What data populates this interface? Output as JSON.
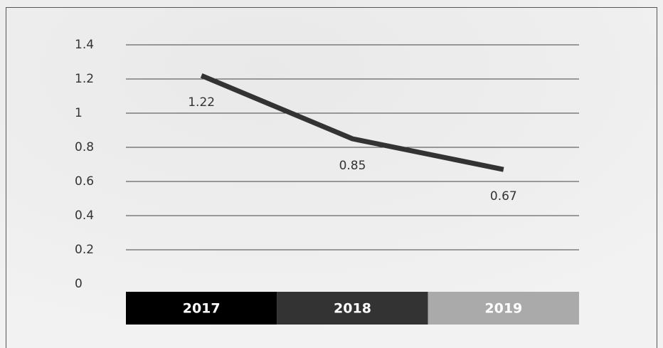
{
  "chart_data": {
    "type": "line",
    "categories": [
      "2017",
      "2018",
      "2019"
    ],
    "category_colors": [
      "#000000",
      "#333333",
      "#aaaaaa"
    ],
    "series": [
      {
        "color": "#333333",
        "values": [
          1.22,
          0.85,
          0.67
        ]
      }
    ],
    "ylim": [
      0,
      1.4
    ],
    "yticks": [
      0,
      0.2,
      0.4,
      0.6,
      0.8,
      1,
      1.2,
      1.4
    ],
    "grid": true
  }
}
